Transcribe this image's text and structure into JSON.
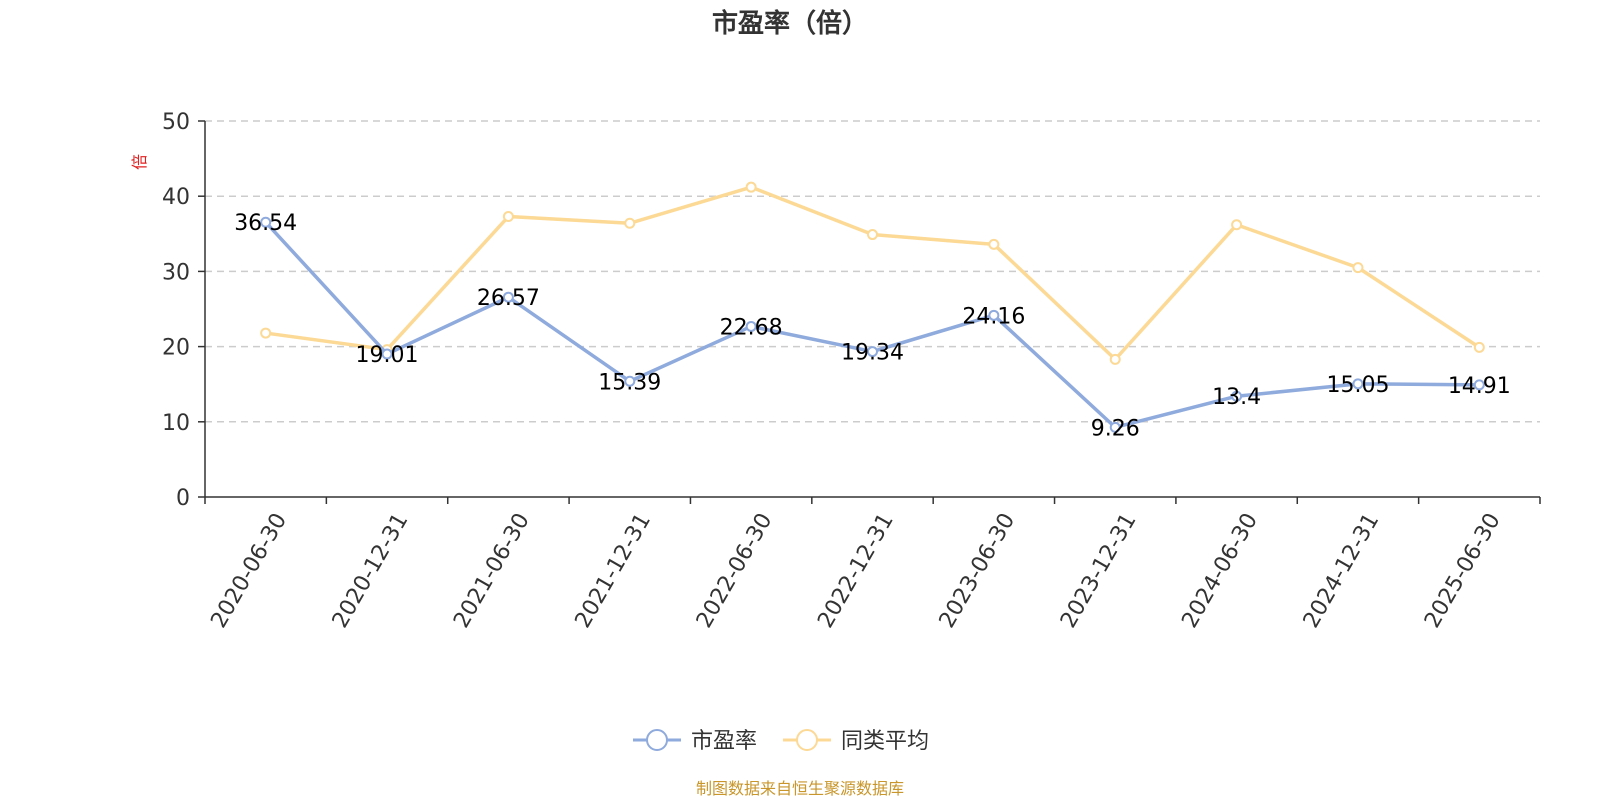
{
  "chart_data": {
    "type": "line",
    "title": "市盈率（倍）",
    "y_unit": "倍",
    "categories": [
      "2020-06-30",
      "2020-12-31",
      "2021-06-30",
      "2021-12-31",
      "2022-06-30",
      "2022-12-31",
      "2023-06-30",
      "2023-12-31",
      "2024-06-30",
      "2024-12-31",
      "2025-06-30"
    ],
    "ylim": [
      0,
      50
    ],
    "yticks": [
      0,
      10,
      20,
      30,
      40,
      50
    ],
    "grid": true,
    "legend_position": "bottom",
    "series": [
      {
        "name": "市盈率",
        "color": "#8faadc",
        "values": [
          36.54,
          19.01,
          26.57,
          15.39,
          22.68,
          19.34,
          24.16,
          9.26,
          13.4,
          15.05,
          14.91
        ],
        "labels": [
          "36.54",
          "19.01",
          "26.57",
          "15.39",
          "22.68",
          "19.34",
          "24.16",
          "9.26",
          "13.4",
          "15.05",
          "14.91"
        ],
        "show_labels": true
      },
      {
        "name": "同类平均",
        "color": "#fcd995",
        "values": [
          21.8,
          19.6,
          37.3,
          36.4,
          41.2,
          34.9,
          33.6,
          18.3,
          36.2,
          30.5,
          19.9
        ],
        "show_labels": false
      }
    ]
  },
  "source_text": "制图数据来自恒生聚源数据库",
  "colors": {
    "axis": "#333333",
    "grid": "#cccccc",
    "unit_label": "#e02020",
    "source_text": "#c8962a"
  }
}
